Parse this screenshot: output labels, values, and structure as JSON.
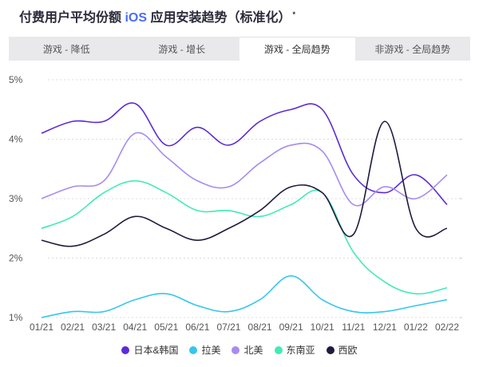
{
  "header": {
    "title_prefix": "付费用户平均份额",
    "title_highlight": "iOS",
    "title_suffix": "应用安装趋势（标准化）",
    "title_mark": "*"
  },
  "tabs": [
    {
      "label": "游戏 - 降低",
      "active": false
    },
    {
      "label": "游戏 - 增长",
      "active": false
    },
    {
      "label": "游戏 - 全局趋势",
      "active": true
    },
    {
      "label": "非游戏 - 全局趋势",
      "active": false
    }
  ],
  "colors": {
    "日本&韩国": "#5b2bd6",
    "拉美": "#35c5ee",
    "北美": "#a78bf0",
    "东南亚": "#40ebb6",
    "西欧": "#1f1a3e"
  },
  "chart_data": {
    "type": "line",
    "categories": [
      "01/21",
      "02/21",
      "03/21",
      "04/21",
      "05/21",
      "06/21",
      "07/21",
      "08/21",
      "09/21",
      "10/21",
      "11/21",
      "12/21",
      "01/22",
      "02/22"
    ],
    "y_tick_labels": [
      "1%",
      "2%",
      "3%",
      "4%",
      "5%"
    ],
    "ylim": [
      1,
      5
    ],
    "grid": true,
    "legend_position": "bottom",
    "series": [
      {
        "name": "日本&韩国",
        "values": [
          4.1,
          4.3,
          4.3,
          4.6,
          3.9,
          4.2,
          3.9,
          4.3,
          4.5,
          4.5,
          3.4,
          3.1,
          3.4,
          2.9
        ]
      },
      {
        "name": "拉美",
        "values": [
          1.0,
          1.1,
          1.1,
          1.3,
          1.4,
          1.2,
          1.1,
          1.3,
          1.7,
          1.3,
          1.1,
          1.1,
          1.2,
          1.3
        ]
      },
      {
        "name": "北美",
        "values": [
          3.0,
          3.2,
          3.3,
          4.1,
          3.7,
          3.3,
          3.2,
          3.6,
          3.9,
          3.8,
          2.9,
          3.2,
          3.0,
          3.4
        ]
      },
      {
        "name": "东南亚",
        "values": [
          2.5,
          2.7,
          3.1,
          3.3,
          3.1,
          2.8,
          2.8,
          2.7,
          2.9,
          3.1,
          2.1,
          1.6,
          1.4,
          1.5
        ]
      },
      {
        "name": "西欧",
        "values": [
          2.3,
          2.2,
          2.4,
          2.7,
          2.5,
          2.3,
          2.5,
          2.8,
          3.2,
          3.1,
          2.4,
          4.3,
          2.5,
          2.5
        ]
      }
    ]
  }
}
